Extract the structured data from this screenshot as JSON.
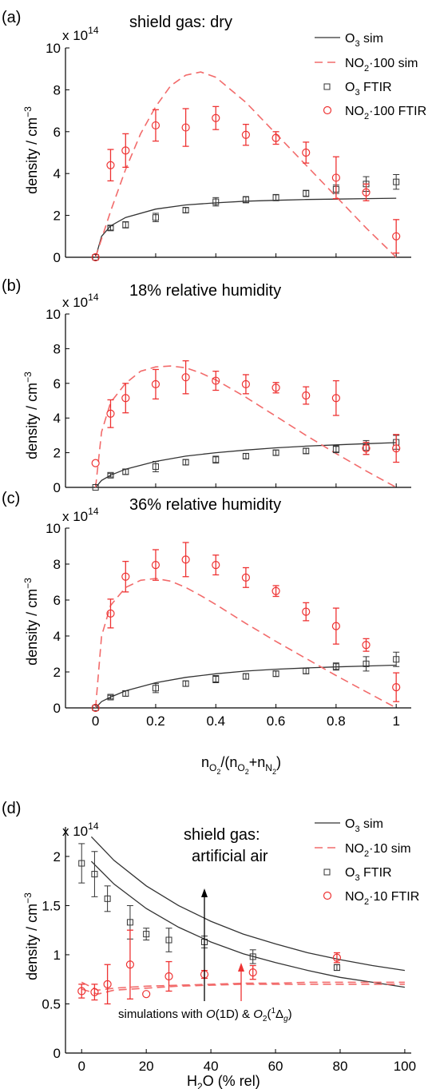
{
  "chart_data": [
    {
      "type": "scatter",
      "panel": "(a)",
      "annotation": "shield gas: dry",
      "ylabel": "density / cm⁻³",
      "y_multiplier": "x 10¹⁴",
      "ylim": [
        0,
        10
      ],
      "yticks": [
        0,
        2,
        4,
        6,
        8,
        10
      ],
      "xlim": [
        -0.1,
        1.05
      ],
      "legend": [
        "O₃ sim",
        "NO₂·100 sim",
        "O₃ FTIR",
        "NO₂·100 FTIR"
      ],
      "legend_position": "top-right",
      "series": [
        {
          "kind": "line",
          "style": "solid",
          "x": [
            0,
            0.02,
            0.05,
            0.1,
            0.2,
            0.3,
            0.4,
            0.5,
            0.6,
            0.7,
            0.8,
            0.9,
            1.0
          ],
          "y": [
            0,
            1.0,
            1.5,
            1.9,
            2.3,
            2.5,
            2.6,
            2.68,
            2.72,
            2.76,
            2.78,
            2.8,
            2.82
          ]
        },
        {
          "kind": "line",
          "style": "dashed",
          "x": [
            0,
            0.05,
            0.1,
            0.15,
            0.2,
            0.25,
            0.3,
            0.35,
            0.4,
            0.5,
            0.6,
            0.7,
            0.8,
            0.9,
            1.0
          ],
          "y": [
            0,
            2.2,
            4.2,
            5.9,
            7.2,
            8.2,
            8.7,
            8.85,
            8.6,
            7.4,
            5.9,
            4.4,
            2.9,
            1.4,
            0.0
          ]
        },
        {
          "kind": "points",
          "x": [
            0,
            0.05,
            0.1,
            0.2,
            0.3,
            0.4,
            0.5,
            0.6,
            0.7,
            0.8,
            0.9,
            1.0
          ],
          "y": [
            0,
            1.4,
            1.55,
            1.9,
            2.25,
            2.65,
            2.75,
            2.85,
            3.05,
            3.25,
            3.5,
            3.6
          ],
          "err": [
            0,
            0.1,
            0.15,
            0.2,
            0.12,
            0.2,
            0.15,
            0.15,
            0.15,
            0.2,
            0.35,
            0.35
          ]
        },
        {
          "kind": "points",
          "x": [
            0,
            0.05,
            0.1,
            0.2,
            0.3,
            0.4,
            0.5,
            0.6,
            0.7,
            0.8,
            0.9,
            1.0
          ],
          "y": [
            0,
            4.4,
            5.1,
            6.3,
            6.2,
            6.65,
            5.85,
            5.7,
            5.0,
            3.8,
            3.1,
            1.0
          ],
          "err": [
            0,
            0.75,
            0.8,
            0.75,
            0.9,
            0.55,
            0.5,
            0.3,
            0.5,
            1.0,
            0.4,
            0.8
          ]
        }
      ]
    },
    {
      "type": "scatter",
      "panel": "(b)",
      "annotation": "18% relative humidity",
      "ylabel": "density / cm⁻³",
      "y_multiplier": "x 10¹⁴",
      "ylim": [
        0,
        10
      ],
      "yticks": [
        0,
        2,
        4,
        6,
        8,
        10
      ],
      "xlim": [
        -0.1,
        1.05
      ],
      "series": [
        {
          "kind": "line",
          "style": "solid",
          "x": [
            0,
            0.02,
            0.05,
            0.1,
            0.2,
            0.3,
            0.4,
            0.5,
            0.6,
            0.7,
            0.8,
            0.9,
            1.0
          ],
          "y": [
            0,
            0.4,
            0.7,
            1.05,
            1.5,
            1.8,
            2.0,
            2.15,
            2.28,
            2.38,
            2.45,
            2.52,
            2.58
          ]
        },
        {
          "kind": "line",
          "style": "dashed",
          "x": [
            0,
            0.02,
            0.05,
            0.1,
            0.15,
            0.2,
            0.25,
            0.3,
            0.35,
            0.4,
            0.5,
            0.6,
            0.7,
            0.8,
            0.9,
            1.0
          ],
          "y": [
            0,
            3.2,
            4.9,
            6.0,
            6.7,
            6.95,
            7.0,
            6.9,
            6.6,
            6.2,
            5.2,
            4.1,
            3.0,
            1.95,
            0.95,
            0.0
          ]
        },
        {
          "kind": "points",
          "x": [
            0,
            0.05,
            0.1,
            0.2,
            0.3,
            0.4,
            0.5,
            0.6,
            0.7,
            0.8,
            0.9,
            1.0
          ],
          "y": [
            0,
            0.7,
            0.9,
            1.2,
            1.45,
            1.6,
            1.8,
            2.0,
            2.1,
            2.2,
            2.3,
            2.6
          ],
          "err": [
            0,
            0.1,
            0.15,
            0.3,
            0.15,
            0.2,
            0.15,
            0.15,
            0.15,
            0.2,
            0.4,
            0.4
          ]
        },
        {
          "kind": "points",
          "x": [
            0,
            0.05,
            0.1,
            0.2,
            0.3,
            0.4,
            0.5,
            0.6,
            0.7,
            0.8,
            0.9,
            1.0
          ],
          "y": [
            1.4,
            4.25,
            5.15,
            5.95,
            6.35,
            6.15,
            5.95,
            5.75,
            5.3,
            5.15,
            2.25,
            2.25
          ],
          "err": [
            0,
            0.8,
            0.85,
            0.85,
            0.95,
            0.55,
            0.55,
            0.3,
            0.5,
            1.0,
            0.35,
            0.8
          ]
        }
      ]
    },
    {
      "type": "scatter",
      "panel": "(c)",
      "annotation": "36% relative humidity",
      "ylabel": "density / cm⁻³",
      "y_multiplier": "x 10¹⁴",
      "ylim": [
        0,
        10
      ],
      "yticks": [
        0,
        2,
        4,
        6,
        8,
        10
      ],
      "xlim": [
        -0.1,
        1.05
      ],
      "xticks": [
        0,
        0.2,
        0.4,
        0.6,
        0.8,
        1
      ],
      "xlabel": "n_O2 /(n_O2 +n_N2 )",
      "series": [
        {
          "kind": "line",
          "style": "solid",
          "x": [
            0,
            0.02,
            0.05,
            0.1,
            0.2,
            0.3,
            0.4,
            0.5,
            0.6,
            0.7,
            0.8,
            0.9,
            1.0
          ],
          "y": [
            0,
            0.35,
            0.6,
            0.95,
            1.4,
            1.7,
            1.9,
            2.05,
            2.15,
            2.22,
            2.28,
            2.33,
            2.38
          ]
        },
        {
          "kind": "line",
          "style": "dashed",
          "x": [
            0,
            0.02,
            0.05,
            0.1,
            0.15,
            0.2,
            0.25,
            0.3,
            0.35,
            0.4,
            0.5,
            0.6,
            0.7,
            0.8,
            0.9,
            1.0
          ],
          "y": [
            0,
            4.0,
            5.7,
            6.7,
            7.1,
            7.2,
            7.05,
            6.7,
            6.25,
            5.75,
            4.7,
            3.7,
            2.75,
            1.8,
            0.9,
            0.0
          ]
        },
        {
          "kind": "points",
          "x": [
            0,
            0.05,
            0.1,
            0.2,
            0.3,
            0.4,
            0.5,
            0.6,
            0.7,
            0.8,
            0.9,
            1.0
          ],
          "y": [
            0,
            0.6,
            0.8,
            1.1,
            1.35,
            1.6,
            1.75,
            1.9,
            2.05,
            2.3,
            2.45,
            2.7
          ],
          "err": [
            0,
            0.1,
            0.15,
            0.25,
            0.15,
            0.2,
            0.15,
            0.15,
            0.15,
            0.2,
            0.4,
            0.4
          ]
        },
        {
          "kind": "points",
          "x": [
            0,
            0.05,
            0.1,
            0.2,
            0.3,
            0.4,
            0.5,
            0.6,
            0.7,
            0.8,
            0.9,
            1.0
          ],
          "y": [
            0,
            5.25,
            7.3,
            7.95,
            8.25,
            7.95,
            7.25,
            6.5,
            5.35,
            4.55,
            3.5,
            1.15
          ],
          "err": [
            0,
            0.8,
            0.85,
            0.85,
            0.95,
            0.55,
            0.55,
            0.3,
            0.5,
            1.0,
            0.35,
            0.8
          ]
        }
      ]
    },
    {
      "type": "scatter",
      "panel": "(d)",
      "annotation_line1": "shield gas:",
      "annotation_line2": "artificial air",
      "ylabel": "density / cm⁻³",
      "y_multiplier": "x 10¹⁴",
      "ylim": [
        0,
        2.3
      ],
      "yticks": [
        0,
        0.5,
        1,
        1.5,
        2
      ],
      "ytick_labels": [
        "0",
        "0.5",
        "1",
        "1.5",
        "2"
      ],
      "xlim": [
        -5,
        102
      ],
      "xticks": [
        0,
        20,
        40,
        60,
        80,
        100
      ],
      "xlabel": "H₂O (% rel)",
      "legend": [
        "O₃ sim",
        "NO₂·10 sim",
        "O₃ FTIR",
        "NO₂·10 FTIR"
      ],
      "legend_position": "top-right",
      "note": "simulations with O(1D) & O₂(¹Δg)",
      "series": [
        {
          "kind": "line",
          "style": "solid",
          "x": [
            3,
            10,
            20,
            30,
            40,
            50,
            60,
            70,
            80,
            90,
            100
          ],
          "y": [
            2.2,
            1.96,
            1.7,
            1.5,
            1.34,
            1.21,
            1.11,
            1.02,
            0.95,
            0.89,
            0.84
          ]
        },
        {
          "kind": "line",
          "style": "solid",
          "x": [
            3,
            10,
            20,
            30,
            40,
            50,
            60,
            70,
            80,
            90,
            100
          ],
          "y": [
            1.95,
            1.72,
            1.47,
            1.28,
            1.13,
            1.01,
            0.92,
            0.84,
            0.77,
            0.72,
            0.67
          ]
        },
        {
          "kind": "line",
          "style": "dashed",
          "x": [
            0,
            5,
            10,
            20,
            30,
            40,
            50,
            60,
            70,
            80,
            90,
            100
          ],
          "y": [
            0.72,
            0.64,
            0.66,
            0.68,
            0.69,
            0.7,
            0.71,
            0.71,
            0.72,
            0.72,
            0.72,
            0.72
          ]
        },
        {
          "kind": "line",
          "style": "dashed",
          "x": [
            0,
            5,
            10,
            20,
            30,
            40,
            50,
            60,
            70,
            80,
            90,
            100
          ],
          "y": [
            0.65,
            0.6,
            0.64,
            0.66,
            0.68,
            0.69,
            0.7,
            0.7,
            0.7,
            0.7,
            0.7,
            0.7
          ]
        },
        {
          "kind": "points",
          "x": [
            0,
            4,
            8,
            15,
            20,
            27,
            38,
            53,
            79
          ],
          "y": [
            1.93,
            1.82,
            1.57,
            1.33,
            1.21,
            1.15,
            1.13,
            0.98,
            0.87
          ],
          "err": [
            0.2,
            0.23,
            0.13,
            0.17,
            0.06,
            0.12,
            0.06,
            0.07,
            0.03
          ]
        },
        {
          "kind": "points",
          "x": [
            0,
            4,
            8,
            15,
            20,
            27,
            38,
            53,
            79
          ],
          "y": [
            0.63,
            0.62,
            0.7,
            0.9,
            0.6,
            0.78,
            0.8,
            0.82,
            0.97
          ],
          "err": [
            0.07,
            0.08,
            0.2,
            0.35,
            0,
            0.15,
            0.04,
            0.07,
            0.05
          ]
        }
      ]
    }
  ],
  "labels": {
    "panel_a": "(a)",
    "panel_b": "(b)",
    "panel_c": "(c)",
    "panel_d": "(d)",
    "title_a": "shield gas: dry",
    "title_b": "18% relative humidity",
    "title_c": "36% relative humidity",
    "title_d1": "shield gas:",
    "title_d2": "artificial air",
    "mult": "x 10",
    "mult_exp": "14",
    "ylabel_main": "density / cm",
    "ylabel_exp": "−3",
    "legend_o3_sim_pre": "O",
    "legend_o3_sim_sub": "3",
    "legend_o3_sim_post": " sim",
    "legend_no2_pre": "NO",
    "legend_no2_sub": "2",
    "legend_no2_100_sim": "·100 sim",
    "legend_no2_100_ftir": "·100 FTIR",
    "legend_no2_10_sim": "·10 sim",
    "legend_no2_10_ftir": "·10 FTIR",
    "legend_ftir": " FTIR",
    "xlabel_c_n": "n",
    "xlabel_c_o2": "O",
    "xlabel_c_2": "2",
    "xlabel_c_mid": "/(n",
    "xlabel_c_plus": "+n",
    "xlabel_c_n2": "N",
    "xlabel_c_end": ")",
    "xlabel_d_pre": "H",
    "xlabel_d_sub": "2",
    "xlabel_d_post": "O (% rel)",
    "note_d": "simulations with ",
    "note_d_o": "O",
    "note_d_1d": "(1D) & ",
    "note_d_o2": "O",
    "note_d_o2sub": "2",
    "note_d_paren": "(",
    "note_d_1": "1",
    "note_d_delta": "Δ",
    "note_d_g": "g",
    "note_d_close": ")"
  },
  "colors": {
    "o3": "#333333",
    "no2": "#e33333",
    "no2_line": "#f26b6b"
  }
}
